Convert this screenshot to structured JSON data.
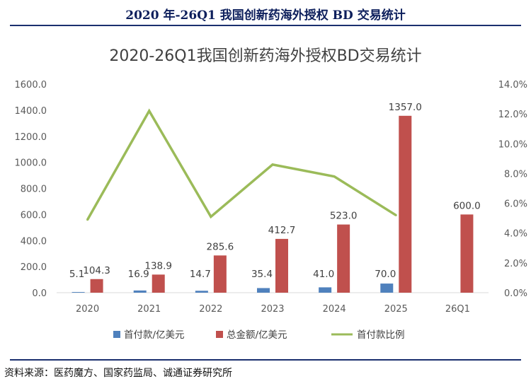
{
  "header": {
    "title": "2020 年-26Q1 我国创新药海外授权 BD 交易统计"
  },
  "footer": {
    "source": "资料来源：医药魔方、国家药监局、诚通证券研究所"
  },
  "colors": {
    "upfront": "#4f81bd",
    "total": "#c0504d",
    "ratio": "#9bbb59",
    "header": "#0d1f5c"
  },
  "chart_data": {
    "type": "bar",
    "title": "2020-26Q1我国创新药海外授权BD交易统计",
    "categories": [
      "2020",
      "2021",
      "2022",
      "2023",
      "2024",
      "2025",
      "26Q1"
    ],
    "series": [
      {
        "name": "首付款/亿美元",
        "type": "bar",
        "axis": "left",
        "values": [
          5.1,
          16.9,
          14.7,
          35.4,
          41.0,
          70.0,
          null
        ],
        "labels": [
          "5.1",
          "16.9",
          "14.7",
          "35.4",
          "41.0",
          "70.0",
          ""
        ]
      },
      {
        "name": "总金额/亿美元",
        "type": "bar",
        "axis": "left",
        "values": [
          104.3,
          138.9,
          285.6,
          412.7,
          523.0,
          1357.0,
          600.0
        ],
        "labels": [
          "104.3",
          "138.9",
          "285.6",
          "412.7",
          "523.0",
          "1357.0",
          "600.0"
        ]
      },
      {
        "name": "首付款比例",
        "type": "line",
        "axis": "right",
        "values": [
          4.9,
          12.2,
          5.1,
          8.6,
          7.8,
          5.2,
          null
        ]
      }
    ],
    "ylim": [
      0,
      1600
    ],
    "y_ticks": [
      "0.0",
      "200.0",
      "400.0",
      "600.0",
      "800.0",
      "1000.0",
      "1200.0",
      "1400.0",
      "1600.0"
    ],
    "y2lim": [
      0,
      14
    ],
    "y2_ticks": [
      "0.0%",
      "2.0%",
      "4.0%",
      "6.0%",
      "8.0%",
      "10.0%",
      "12.0%",
      "14.0%"
    ],
    "grid": false,
    "legend": "bottom"
  }
}
